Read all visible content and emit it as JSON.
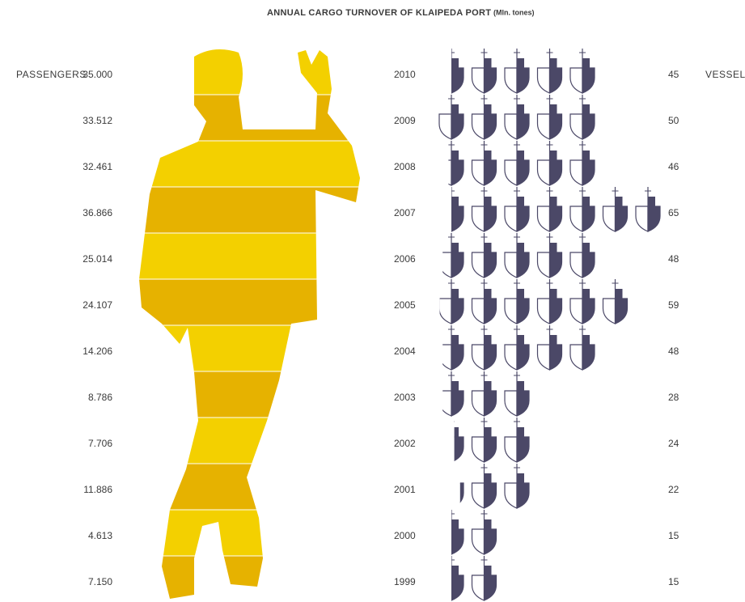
{
  "chart_data": {
    "type": "pictogram",
    "title": "ANNUAL CARGO TURNOVER OF KLAIPEDA PORT",
    "subtitle": "(Mln. tones)",
    "categories": [
      "2010",
      "2009",
      "2008",
      "2007",
      "2006",
      "2005",
      "2004",
      "2003",
      "2002",
      "2001",
      "2000",
      "1999"
    ],
    "series": [
      {
        "name": "PASSENGERS",
        "color": "#f3d000",
        "values": [
          35000,
          33512,
          32461,
          36866,
          25014,
          24107,
          14206,
          8786,
          7706,
          11886,
          4613,
          7150
        ],
        "value_labels": [
          "35.000",
          "33.512",
          "32.461",
          "36.866",
          "25.014",
          "24.107",
          "14.206",
          "8.786",
          "7.706",
          "11.886",
          "4.613",
          "7.150"
        ]
      },
      {
        "name": "VESSELS",
        "color": "#4b4867",
        "values": [
          45,
          50,
          46,
          65,
          48,
          59,
          48,
          28,
          24,
          22,
          15,
          15
        ]
      }
    ]
  }
}
